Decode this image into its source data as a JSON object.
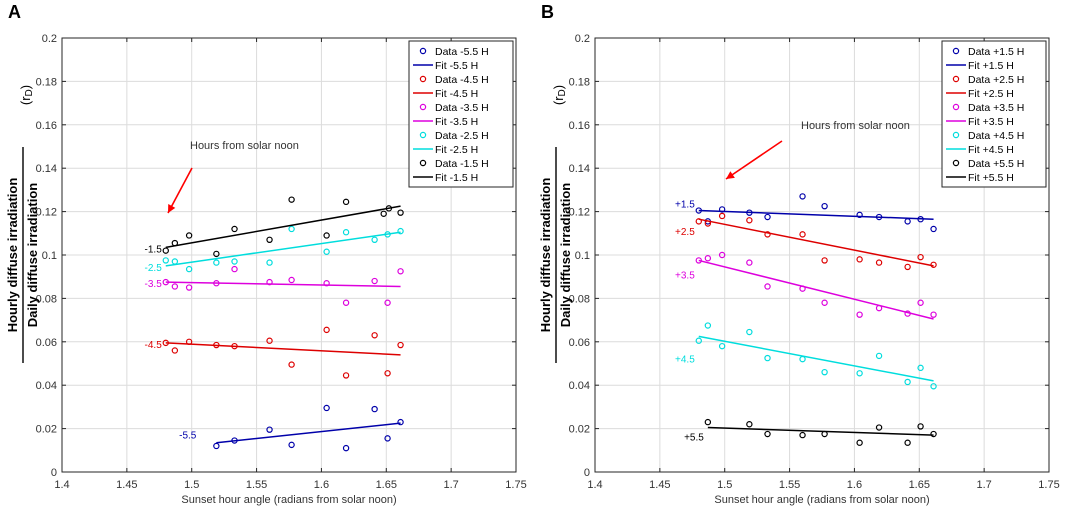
{
  "panels": [
    {
      "letter": "A"
    },
    {
      "letter": "B"
    }
  ],
  "ylabel_parts": {
    "numerator": "Hourly diffuse irradiation",
    "denominator": "Daily diffuse irradiation",
    "symbol": "(r",
    "subscript": "D",
    "close": ")"
  },
  "chart_data": [
    {
      "type": "scatter",
      "panel": "A",
      "xlabel": "Sunset hour angle (radians from solar noon)",
      "ylabel": "Hourly diffuse irradiation / Daily diffuse irradiation (rD)",
      "xlim": [
        1.4,
        1.75
      ],
      "ylim": [
        0,
        0.2
      ],
      "xticks": [
        1.4,
        1.45,
        1.5,
        1.55,
        1.6,
        1.65,
        1.7,
        1.75
      ],
      "xtick_labels": [
        "1.4",
        "1.45",
        "1.5",
        "1.55",
        "1.6",
        "1.65",
        "1.7",
        "1.75"
      ],
      "yticks": [
        0,
        0.02,
        0.04,
        0.06,
        0.08,
        0.1,
        0.12,
        0.14,
        0.16,
        0.18,
        0.2
      ],
      "ytick_labels": [
        "0",
        "0.02",
        "0.04",
        "0.06",
        "0.08",
        "0.1",
        "0.12",
        "0.14",
        "0.16",
        "0.18",
        "0.2"
      ],
      "grid": true,
      "legend_position": "top-right",
      "annotation": "Hours from solar noon",
      "series": [
        {
          "name": "-5.5 H",
          "legend_data": "Data -5.5 H",
          "legend_fit": "Fit -5.5 H",
          "color": "#0000aa",
          "label": "-5.5",
          "x": [
            1.519,
            1.533,
            1.56,
            1.577,
            1.604,
            1.619,
            1.641,
            1.651,
            1.661
          ],
          "y": [
            0.012,
            0.0145,
            0.0195,
            0.0125,
            0.0295,
            0.011,
            0.029,
            0.0155,
            0.023
          ],
          "fit": [
            [
              1.519,
              0.0135
            ],
            [
              1.661,
              0.0225
            ]
          ]
        },
        {
          "name": "-4.5 H",
          "legend_data": "Data -4.5 H",
          "legend_fit": "Fit -4.5 H",
          "color": "#dd0000",
          "label": "-4.5",
          "x": [
            1.48,
            1.487,
            1.498,
            1.519,
            1.533,
            1.56,
            1.577,
            1.604,
            1.619,
            1.641,
            1.651,
            1.661
          ],
          "y": [
            0.0595,
            0.056,
            0.06,
            0.0585,
            0.058,
            0.0605,
            0.0495,
            0.0655,
            0.0445,
            0.063,
            0.0455,
            0.0585
          ],
          "fit": [
            [
              1.48,
              0.0595
            ],
            [
              1.661,
              0.054
            ]
          ]
        },
        {
          "name": "-3.5 H",
          "legend_data": "Data -3.5 H",
          "legend_fit": "Fit -3.5 H",
          "color": "#dd00dd",
          "label": "-3.5",
          "x": [
            1.48,
            1.487,
            1.498,
            1.519,
            1.533,
            1.56,
            1.577,
            1.604,
            1.619,
            1.641,
            1.651,
            1.661
          ],
          "y": [
            0.0875,
            0.0855,
            0.085,
            0.087,
            0.0935,
            0.0875,
            0.0885,
            0.087,
            0.078,
            0.088,
            0.078,
            0.0925
          ],
          "fit": [
            [
              1.48,
              0.0875
            ],
            [
              1.661,
              0.0855
            ]
          ]
        },
        {
          "name": "-2.5 H",
          "legend_data": "Data -2.5 H",
          "legend_fit": "Fit -2.5 H",
          "color": "#00dddd",
          "label": "-2.5",
          "x": [
            1.48,
            1.487,
            1.498,
            1.519,
            1.533,
            1.56,
            1.577,
            1.604,
            1.619,
            1.641,
            1.651,
            1.661
          ],
          "y": [
            0.0975,
            0.097,
            0.0935,
            0.0965,
            0.097,
            0.0965,
            0.112,
            0.1015,
            0.1105,
            0.107,
            0.1095,
            0.111
          ],
          "fit": [
            [
              1.48,
              0.095
            ],
            [
              1.661,
              0.1105
            ]
          ]
        },
        {
          "name": "-1.5 H",
          "legend_data": "Data -1.5 H",
          "legend_fit": "Fit -1.5 H",
          "color": "#000000",
          "label": "-1.5",
          "x": [
            1.48,
            1.487,
            1.498,
            1.519,
            1.533,
            1.56,
            1.577,
            1.604,
            1.619,
            1.648,
            1.652,
            1.661
          ],
          "y": [
            0.102,
            0.1055,
            0.109,
            0.1005,
            0.112,
            0.107,
            0.1255,
            0.109,
            0.1245,
            0.119,
            0.1215,
            0.1195
          ],
          "fit": [
            [
              1.48,
              0.1035
            ],
            [
              1.661,
              0.1225
            ]
          ]
        }
      ]
    },
    {
      "type": "scatter",
      "panel": "B",
      "xlabel": "Sunset hour angle (radians from solar noon)",
      "ylabel": "Hourly diffuse irradiation / Daily diffuse irradiation (rD)",
      "xlim": [
        1.4,
        1.75
      ],
      "ylim": [
        0,
        0.2
      ],
      "xticks": [
        1.4,
        1.45,
        1.5,
        1.55,
        1.6,
        1.65,
        1.7,
        1.75
      ],
      "xtick_labels": [
        "1.4",
        "1.45",
        "1.5",
        "1.55",
        "1.6",
        "1.65",
        "1.7",
        "1.75"
      ],
      "yticks": [
        0,
        0.02,
        0.04,
        0.06,
        0.08,
        0.1,
        0.12,
        0.14,
        0.16,
        0.18,
        0.2
      ],
      "ytick_labels": [
        "0",
        "0.02",
        "0.04",
        "0.06",
        "0.08",
        "0.1",
        "0.12",
        "0.14",
        "0.16",
        "0.18",
        "0.2"
      ],
      "grid": true,
      "legend_position": "top-right",
      "annotation": "Hours from solar noon",
      "series": [
        {
          "name": "+1.5 H",
          "legend_data": "Data +1.5 H",
          "legend_fit": "Fit +1.5 H",
          "color": "#0000aa",
          "label": "+1.5",
          "x": [
            1.48,
            1.487,
            1.498,
            1.519,
            1.533,
            1.56,
            1.577,
            1.604,
            1.619,
            1.641,
            1.651,
            1.661
          ],
          "y": [
            0.1205,
            0.1155,
            0.121,
            0.1195,
            0.1175,
            0.127,
            0.1225,
            0.1185,
            0.1175,
            0.1155,
            0.1165,
            0.112
          ],
          "fit": [
            [
              1.48,
              0.1205
            ],
            [
              1.661,
              0.1165
            ]
          ]
        },
        {
          "name": "+2.5 H",
          "legend_data": "Data +2.5 H",
          "legend_fit": "Fit +2.5 H",
          "color": "#dd0000",
          "label": "+2.5",
          "x": [
            1.48,
            1.487,
            1.498,
            1.519,
            1.533,
            1.56,
            1.577,
            1.604,
            1.619,
            1.641,
            1.651,
            1.661
          ],
          "y": [
            0.1155,
            0.1145,
            0.118,
            0.116,
            0.1095,
            0.1095,
            0.0975,
            0.098,
            0.0965,
            0.0945,
            0.099,
            0.0955
          ],
          "fit": [
            [
              1.48,
              0.1165
            ],
            [
              1.661,
              0.095
            ]
          ]
        },
        {
          "name": "+3.5 H",
          "legend_data": "Data +3.5 H",
          "legend_fit": "Fit +3.5 H",
          "color": "#dd00dd",
          "label": "+3.5",
          "x": [
            1.48,
            1.487,
            1.498,
            1.519,
            1.533,
            1.56,
            1.577,
            1.604,
            1.619,
            1.641,
            1.651,
            1.661
          ],
          "y": [
            0.0975,
            0.0985,
            0.1,
            0.0965,
            0.0855,
            0.0845,
            0.078,
            0.0725,
            0.0755,
            0.073,
            0.078,
            0.0725
          ],
          "fit": [
            [
              1.48,
              0.0975
            ],
            [
              1.661,
              0.0705
            ]
          ]
        },
        {
          "name": "+4.5 H",
          "legend_data": "Data +4.5 H",
          "legend_fit": "Fit +4.5 H",
          "color": "#00dddd",
          "label": "+4.5",
          "x": [
            1.48,
            1.487,
            1.498,
            1.519,
            1.533,
            1.56,
            1.577,
            1.604,
            1.619,
            1.641,
            1.651,
            1.661
          ],
          "y": [
            0.0605,
            0.0675,
            0.058,
            0.0645,
            0.0525,
            0.052,
            0.046,
            0.0455,
            0.0535,
            0.0415,
            0.048,
            0.0395
          ],
          "fit": [
            [
              1.48,
              0.0625
            ],
            [
              1.661,
              0.042
            ]
          ]
        },
        {
          "name": "+5.5 H",
          "legend_data": "Data +5.5 H",
          "legend_fit": "Fit +5.5 H",
          "color": "#000000",
          "label": "+5.5",
          "x": [
            1.487,
            1.519,
            1.533,
            1.56,
            1.577,
            1.604,
            1.619,
            1.641,
            1.651,
            1.661
          ],
          "y": [
            0.023,
            0.022,
            0.0175,
            0.017,
            0.0175,
            0.0135,
            0.0205,
            0.0135,
            0.021,
            0.0175
          ],
          "fit": [
            [
              1.487,
              0.0205
            ],
            [
              1.661,
              0.017
            ]
          ]
        }
      ]
    }
  ]
}
